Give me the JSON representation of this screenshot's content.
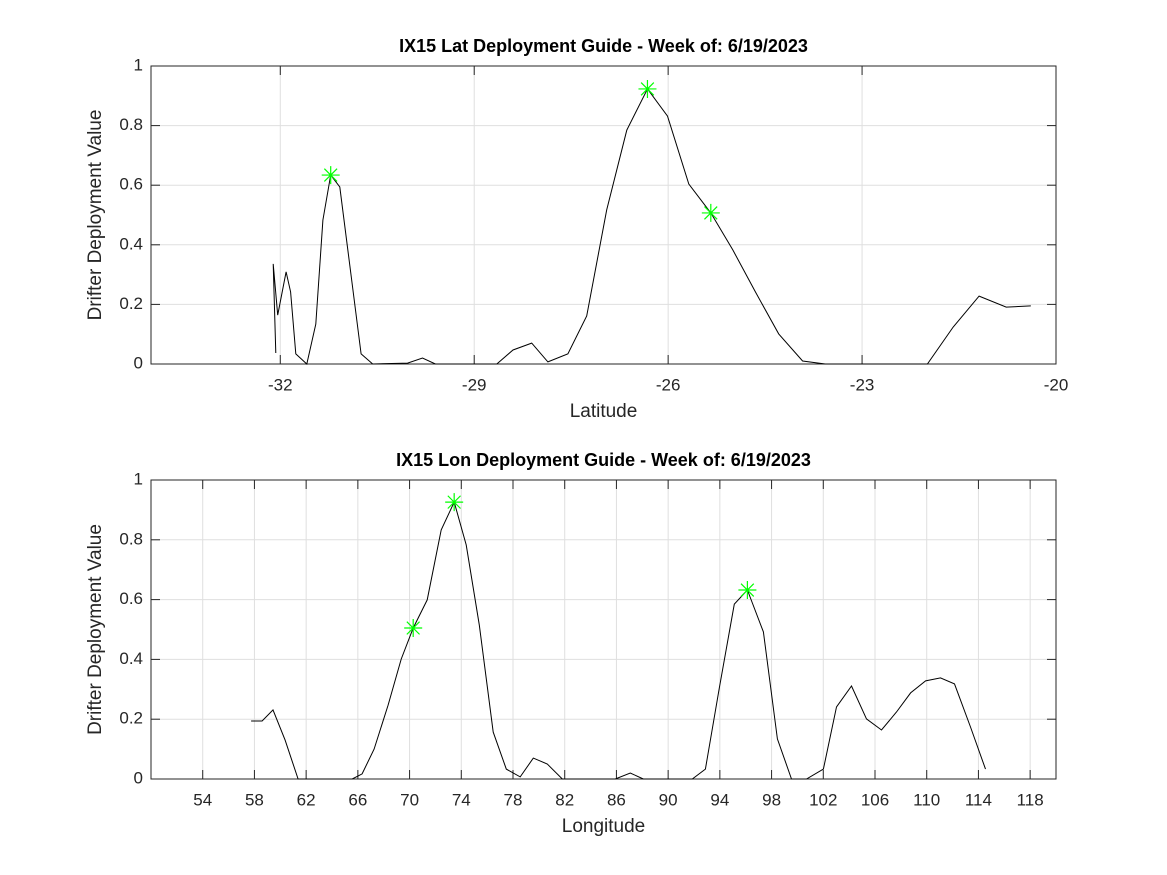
{
  "chart_data": [
    {
      "type": "line",
      "title": "IX15 Lat Deployment Guide - Week of: 6/19/2023",
      "xlabel": "Latitude",
      "ylabel": "Drifter Deployment Value",
      "xlim": [
        -34,
        -20
      ],
      "xticks": [
        -32,
        -29,
        -26,
        -23,
        -20
      ],
      "ylim": [
        0,
        1
      ],
      "yticks": [
        0,
        0.2,
        0.4,
        0.6,
        0.8,
        1
      ],
      "grid": true,
      "color": "#000000",
      "x": [
        -32.07,
        -32.11,
        -32.04,
        -31.91,
        -31.84,
        -31.76,
        -31.59,
        -31.45,
        -31.34,
        -31.22,
        -31.08,
        -30.75,
        -30.57,
        -30.03,
        -29.8,
        -29.6,
        -28.65,
        -28.4,
        -28.11,
        -27.86,
        -27.55,
        -27.26,
        -26.95,
        -26.64,
        -26.32,
        -26.01,
        -25.68,
        -25.34,
        -25.0,
        -24.65,
        -24.29,
        -23.92,
        -23.57,
        -21.99,
        -21.59,
        -21.19,
        -20.77,
        -20.39
      ],
      "values": [
        0.037,
        0.336,
        0.164,
        0.309,
        0.242,
        0.034,
        0,
        0.134,
        0.483,
        0.634,
        0.594,
        0.034,
        0,
        0.003,
        0.02,
        0,
        0,
        0.047,
        0.07,
        0.007,
        0.034,
        0.161,
        0.517,
        0.785,
        0.923,
        0.832,
        0.604,
        0.507,
        0.383,
        0.242,
        0.101,
        0.01,
        0,
        0,
        0.124,
        0.228,
        0.191,
        0.195
      ],
      "markers": {
        "color": "#00ff00",
        "x": [
          -31.22,
          -26.32,
          -25.34
        ],
        "values": [
          0.634,
          0.923,
          0.507
        ]
      }
    },
    {
      "type": "line",
      "title": "IX15 Lon Deployment Guide - Week of: 6/19/2023",
      "xlabel": "Longitude",
      "ylabel": "Drifter Deployment Value",
      "xlim": [
        50,
        120
      ],
      "xticks": [
        54,
        58,
        62,
        66,
        70,
        74,
        78,
        82,
        86,
        90,
        94,
        98,
        102,
        106,
        110,
        114,
        118
      ],
      "ylim": [
        0,
        1
      ],
      "yticks": [
        0,
        0.2,
        0.4,
        0.6,
        0.8,
        1
      ],
      "grid": true,
      "color": "#000000",
      "x": [
        57.74,
        58.59,
        59.44,
        60.37,
        61.38,
        65.56,
        66.33,
        67.26,
        68.34,
        69.35,
        70.28,
        71.36,
        72.45,
        73.45,
        74.38,
        75.39,
        76.47,
        77.48,
        78.56,
        79.57,
        80.65,
        81.81,
        85.91,
        87.07,
        88.08,
        91.87,
        92.88,
        93.96,
        95.12,
        96.13,
        97.37,
        98.45,
        99.54,
        100.7,
        102.01,
        103.02,
        104.18,
        105.34,
        106.5,
        107.66,
        108.75,
        109.91,
        111.07,
        112.15,
        113.39,
        114.55
      ],
      "values": [
        0.194,
        0.194,
        0.231,
        0.13,
        0,
        0,
        0.017,
        0.1,
        0.247,
        0.401,
        0.505,
        0.599,
        0.833,
        0.926,
        0.783,
        0.515,
        0.157,
        0.033,
        0.007,
        0.07,
        0.05,
        0,
        0,
        0.02,
        0,
        0,
        0.033,
        0.304,
        0.585,
        0.632,
        0.492,
        0.134,
        0,
        0,
        0.033,
        0.241,
        0.311,
        0.201,
        0.164,
        0.224,
        0.288,
        0.328,
        0.338,
        0.318,
        0.174,
        0.033
      ],
      "markers": {
        "color": "#00ff00",
        "x": [
          70.28,
          73.45,
          96.13
        ],
        "values": [
          0.505,
          0.926,
          0.632
        ]
      }
    }
  ]
}
